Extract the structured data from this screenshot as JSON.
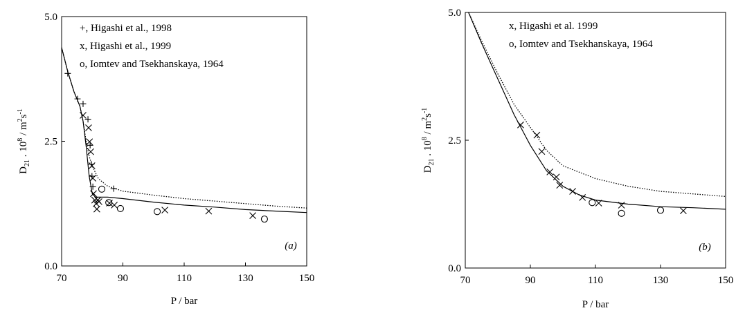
{
  "chart_data": [
    {
      "type": "scatter",
      "annotation": "(a)",
      "xlabel": "P / bar",
      "ylabel": [
        "D",
        "21",
        " . 10",
        "8",
        " / m",
        "2",
        "s",
        "-1"
      ],
      "xlim": [
        70,
        150
      ],
      "ylim": [
        0,
        5
      ],
      "xticks": [
        70,
        90,
        110,
        130,
        150
      ],
      "yticks": [
        {
          "value": 0,
          "label": "0.0"
        },
        {
          "value": 2.5,
          "label": "2.5"
        },
        {
          "value": 5,
          "label": "5.0"
        }
      ],
      "color": "#000000",
      "series": [
        {
          "name": "+, Higashi et al., 1998",
          "marker": "plus",
          "x": [
            72.0,
            75.2,
            77.0,
            78.6,
            79.3,
            79.7,
            79.9,
            80.2,
            87.0
          ],
          "values": [
            3.86,
            3.35,
            3.25,
            2.94,
            2.42,
            2.04,
            1.8,
            1.59,
            1.55
          ]
        },
        {
          "name": "x,  Higashi et al., 1999",
          "marker": "cross",
          "x": [
            77.0,
            78.8,
            79.1,
            79.5,
            79.9,
            80.2,
            80.4,
            80.8,
            81.3,
            81.5,
            81.8,
            82.2,
            85.6,
            87.2,
            103.7,
            118,
            132.4
          ],
          "values": [
            3.02,
            2.77,
            2.49,
            2.29,
            2.01,
            1.76,
            1.45,
            1.32,
            1.25,
            1.14,
            1.32,
            1.29,
            1.26,
            1.22,
            1.12,
            1.1,
            1.01
          ]
        },
        {
          "name": "o, Iomtev and Tsekhanskaya, 1964",
          "marker": "circle",
          "x": [
            83.1,
            85.4,
            89.2,
            101.2,
            136.2
          ],
          "values": [
            1.54,
            1.27,
            1.15,
            1.09,
            0.94
          ]
        },
        {
          "line": "solid",
          "x": [
            70,
            72,
            74,
            76,
            77,
            78,
            79,
            80,
            81,
            85,
            90,
            100,
            110,
            120,
            130,
            140,
            150
          ],
          "values": [
            4.38,
            3.9,
            3.5,
            3.2,
            2.9,
            2.4,
            1.8,
            1.45,
            1.38,
            1.38,
            1.35,
            1.28,
            1.22,
            1.18,
            1.13,
            1.1,
            1.07
          ]
        },
        {
          "line": "dotted",
          "x": [
            70,
            72,
            74,
            76,
            77,
            78,
            79,
            80,
            82,
            85,
            90,
            100,
            110,
            120,
            130,
            140,
            150
          ],
          "values": [
            4.38,
            3.9,
            3.5,
            3.2,
            2.9,
            2.5,
            2.2,
            2.0,
            1.75,
            1.6,
            1.5,
            1.42,
            1.35,
            1.3,
            1.25,
            1.2,
            1.16
          ]
        }
      ]
    },
    {
      "type": "scatter",
      "annotation": "(b)",
      "xlabel": "P / bar",
      "ylabel": [
        "D",
        "21",
        " . 10",
        "8",
        " / m",
        "2",
        "s",
        "-1"
      ],
      "xlim": [
        70,
        150
      ],
      "ylim": [
        0,
        5
      ],
      "xticks": [
        70,
        90,
        110,
        130,
        150
      ],
      "yticks": [
        {
          "value": 0,
          "label": "0.0"
        },
        {
          "value": 2.5,
          "label": "2.5"
        },
        {
          "value": 5,
          "label": "5.0"
        }
      ],
      "color": "#000000",
      "series": [
        {
          "name": "x, Higashi et al. 1999",
          "marker": "cross",
          "x": [
            87,
            92,
            93.5,
            96,
            98,
            99,
            103,
            106,
            111,
            118,
            137
          ],
          "values": [
            2.8,
            2.6,
            2.28,
            1.88,
            1.78,
            1.62,
            1.5,
            1.38,
            1.27,
            1.23,
            1.12
          ]
        },
        {
          "name": "o, Iomtev and Tsekhanskaya, 1964",
          "marker": "circle",
          "x": [
            109,
            118,
            130
          ],
          "values": [
            1.28,
            1.07,
            1.13
          ]
        },
        {
          "line": "solid",
          "x": [
            71,
            75,
            80,
            85,
            90,
            95,
            100,
            105,
            110,
            120,
            130,
            140,
            150
          ],
          "values": [
            5.0,
            4.4,
            3.7,
            3.0,
            2.4,
            1.9,
            1.6,
            1.43,
            1.33,
            1.25,
            1.2,
            1.18,
            1.15
          ]
        },
        {
          "line": "dotted",
          "x": [
            71,
            75,
            80,
            85,
            90,
            95,
            100,
            110,
            120,
            130,
            140,
            150
          ],
          "values": [
            5.0,
            4.45,
            3.8,
            3.2,
            2.75,
            2.3,
            2.0,
            1.75,
            1.6,
            1.5,
            1.45,
            1.4
          ]
        }
      ]
    }
  ]
}
